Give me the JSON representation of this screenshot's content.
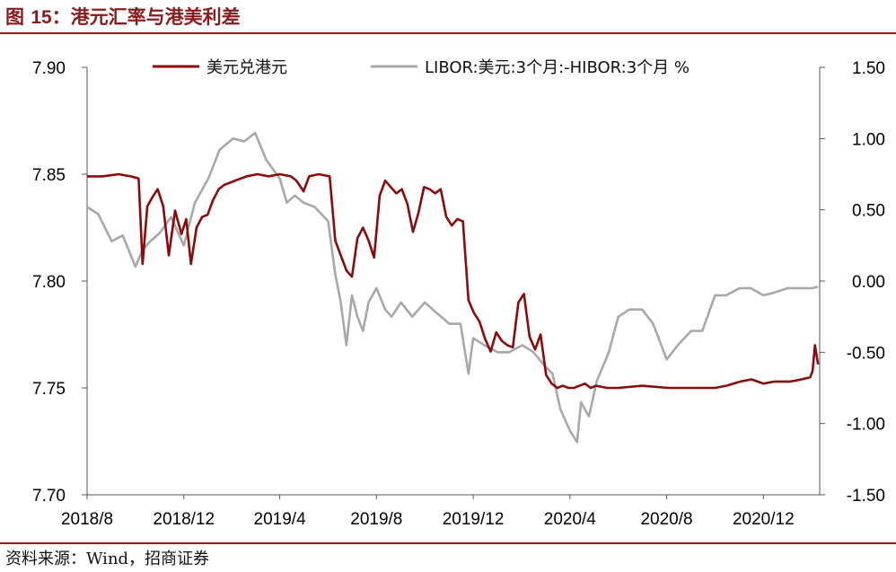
{
  "figure": {
    "prefix": "图 ",
    "number": "15",
    "title": "：港元汇率与港美利差",
    "source": "资料来源：Wind，招商证券"
  },
  "colors": {
    "primary": "#8B0A0A",
    "secondary": "#A8A8A8",
    "brand": "#8B1A1A"
  },
  "chart_data": {
    "type": "line",
    "x_ticks": [
      "2018/8",
      "2018/12",
      "2019/4",
      "2019/8",
      "2019/12",
      "2020/4",
      "2020/8",
      "2020/12"
    ],
    "x_range": [
      "2018-08-01",
      "2021-02-10"
    ],
    "y_left": {
      "min": 7.7,
      "max": 7.9,
      "ticks": [
        "7.70",
        "7.75",
        "7.80",
        "7.85",
        "7.90"
      ]
    },
    "y_right": {
      "min": -1.5,
      "max": 1.5,
      "ticks": [
        "-1.50",
        "-1.00",
        "-0.50",
        "0.00",
        "0.50",
        "1.00",
        "1.50"
      ]
    },
    "grid": false,
    "legend_position": "top",
    "series": [
      {
        "name": "美元兑港元",
        "axis": "left",
        "x": [
          "2018-08-01",
          "2018-08-20",
          "2018-09-10",
          "2018-09-25",
          "2018-10-05",
          "2018-10-10",
          "2018-10-16",
          "2018-10-22",
          "2018-10-29",
          "2018-11-05",
          "2018-11-12",
          "2018-11-20",
          "2018-11-28",
          "2018-12-04",
          "2018-12-10",
          "2018-12-17",
          "2018-12-24",
          "2018-12-31",
          "2019-01-07",
          "2019-01-14",
          "2019-01-21",
          "2019-01-28",
          "2019-02-04",
          "2019-02-11",
          "2019-02-18",
          "2019-03-04",
          "2019-03-18",
          "2019-04-01",
          "2019-04-15",
          "2019-04-22",
          "2019-05-01",
          "2019-05-08",
          "2019-05-20",
          "2019-06-03",
          "2019-06-10",
          "2019-06-17",
          "2019-06-24",
          "2019-07-01",
          "2019-07-08",
          "2019-07-15",
          "2019-07-22",
          "2019-07-29",
          "2019-08-05",
          "2019-08-12",
          "2019-08-19",
          "2019-08-26",
          "2019-09-02",
          "2019-09-09",
          "2019-09-16",
          "2019-09-23",
          "2019-09-30",
          "2019-10-07",
          "2019-10-14",
          "2019-10-21",
          "2019-10-28",
          "2019-11-04",
          "2019-11-11",
          "2019-11-18",
          "2019-11-25",
          "2019-12-02",
          "2019-12-09",
          "2019-12-16",
          "2019-12-23",
          "2019-12-30",
          "2020-01-06",
          "2020-01-13",
          "2020-01-20",
          "2020-01-27",
          "2020-02-03",
          "2020-02-10",
          "2020-02-17",
          "2020-02-24",
          "2020-03-02",
          "2020-03-09",
          "2020-03-16",
          "2020-03-23",
          "2020-03-30",
          "2020-04-06",
          "2020-04-13",
          "2020-04-20",
          "2020-04-27",
          "2020-05-04",
          "2020-05-18",
          "2020-06-01",
          "2020-07-01",
          "2020-08-03",
          "2020-09-01",
          "2020-10-01",
          "2020-10-15",
          "2020-11-02",
          "2020-11-16",
          "2020-12-01",
          "2020-12-15",
          "2021-01-04",
          "2021-01-18",
          "2021-01-29",
          "2021-02-01",
          "2021-02-04",
          "2021-02-08"
        ],
        "values": [
          7.849,
          7.849,
          7.85,
          7.849,
          7.848,
          7.808,
          7.835,
          7.839,
          7.843,
          7.835,
          7.812,
          7.833,
          7.822,
          7.829,
          7.808,
          7.825,
          7.83,
          7.831,
          7.838,
          7.843,
          7.845,
          7.846,
          7.847,
          7.848,
          7.849,
          7.85,
          7.849,
          7.85,
          7.849,
          7.847,
          7.842,
          7.849,
          7.85,
          7.849,
          7.819,
          7.812,
          7.805,
          7.802,
          7.82,
          7.825,
          7.819,
          7.811,
          7.84,
          7.847,
          7.844,
          7.841,
          7.843,
          7.836,
          7.823,
          7.832,
          7.844,
          7.843,
          7.841,
          7.843,
          7.83,
          7.826,
          7.829,
          7.828,
          7.791,
          7.785,
          7.781,
          7.773,
          7.767,
          7.776,
          7.772,
          7.77,
          7.769,
          7.79,
          7.794,
          7.774,
          7.768,
          7.775,
          7.756,
          7.752,
          7.75,
          7.751,
          7.75,
          7.75,
          7.751,
          7.752,
          7.75,
          7.751,
          7.75,
          7.75,
          7.751,
          7.75,
          7.75,
          7.75,
          7.751,
          7.753,
          7.754,
          7.752,
          7.753,
          7.753,
          7.754,
          7.755,
          7.758,
          7.77,
          7.761
        ]
      },
      {
        "name": "LIBOR:美元:3个月:-HIBOR:3个月 %",
        "axis": "right",
        "x": [
          "2018-08-01",
          "2018-08-15",
          "2018-09-01",
          "2018-09-15",
          "2018-10-01",
          "2018-10-10",
          "2018-10-20",
          "2018-11-01",
          "2018-11-15",
          "2018-12-01",
          "2018-12-15",
          "2019-01-01",
          "2019-01-15",
          "2019-02-01",
          "2019-02-15",
          "2019-03-01",
          "2019-03-15",
          "2019-04-01",
          "2019-04-10",
          "2019-04-20",
          "2019-05-01",
          "2019-05-15",
          "2019-06-01",
          "2019-06-10",
          "2019-06-17",
          "2019-06-24",
          "2019-07-01",
          "2019-07-08",
          "2019-07-15",
          "2019-07-22",
          "2019-08-01",
          "2019-08-12",
          "2019-08-20",
          "2019-09-01",
          "2019-09-15",
          "2019-10-01",
          "2019-10-15",
          "2019-11-01",
          "2019-11-15",
          "2019-11-25",
          "2019-12-01",
          "2019-12-15",
          "2020-01-01",
          "2020-01-15",
          "2020-02-01",
          "2020-02-15",
          "2020-03-01",
          "2020-03-10",
          "2020-03-20",
          "2020-04-01",
          "2020-04-10",
          "2020-04-15",
          "2020-04-25",
          "2020-05-05",
          "2020-05-20",
          "2020-06-01",
          "2020-06-15",
          "2020-07-01",
          "2020-07-15",
          "2020-08-01",
          "2020-08-15",
          "2020-09-01",
          "2020-09-15",
          "2020-10-01",
          "2020-10-15",
          "2020-11-01",
          "2020-11-15",
          "2020-12-01",
          "2020-12-15",
          "2021-01-01",
          "2021-01-15",
          "2021-02-01",
          "2021-02-08"
        ],
        "values": [
          0.52,
          0.47,
          0.28,
          0.32,
          0.1,
          0.22,
          0.28,
          0.34,
          0.45,
          0.25,
          0.55,
          0.72,
          0.92,
          1.0,
          0.98,
          1.04,
          0.85,
          0.72,
          0.55,
          0.6,
          0.55,
          0.52,
          0.42,
          0.05,
          -0.15,
          -0.45,
          -0.1,
          -0.25,
          -0.35,
          -0.15,
          -0.05,
          -0.2,
          -0.25,
          -0.15,
          -0.25,
          -0.15,
          -0.22,
          -0.3,
          -0.3,
          -0.65,
          -0.4,
          -0.45,
          -0.5,
          -0.5,
          -0.45,
          -0.5,
          -0.6,
          -0.65,
          -0.9,
          -1.05,
          -1.13,
          -0.85,
          -0.95,
          -0.7,
          -0.5,
          -0.25,
          -0.2,
          -0.2,
          -0.3,
          -0.55,
          -0.45,
          -0.35,
          -0.35,
          -0.1,
          -0.1,
          -0.05,
          -0.05,
          -0.1,
          -0.08,
          -0.05,
          -0.05,
          -0.05,
          -0.04
        ]
      }
    ]
  }
}
